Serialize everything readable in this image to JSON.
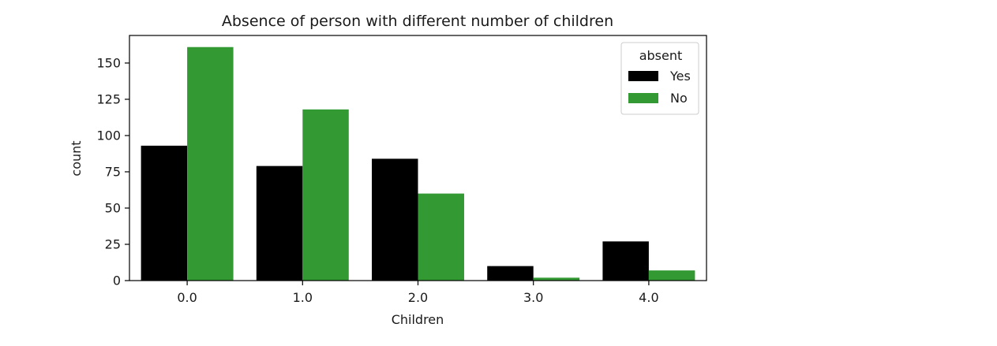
{
  "chart_data": {
    "type": "bar",
    "title": "Absence of person with different number of children",
    "xlabel": "Children",
    "ylabel": "count",
    "categories": [
      "0.0",
      "1.0",
      "2.0",
      "3.0",
      "4.0"
    ],
    "series": [
      {
        "name": "Yes",
        "color": "#000000",
        "values": [
          93,
          79,
          84,
          10,
          27
        ]
      },
      {
        "name": "No",
        "color": "#339933",
        "values": [
          161,
          118,
          60,
          2,
          7
        ]
      }
    ],
    "yticks": [
      0,
      25,
      50,
      75,
      100,
      125,
      150
    ],
    "ylim": [
      0,
      169
    ],
    "legend": {
      "title": "absent",
      "position": "top-right"
    },
    "grid": false
  }
}
